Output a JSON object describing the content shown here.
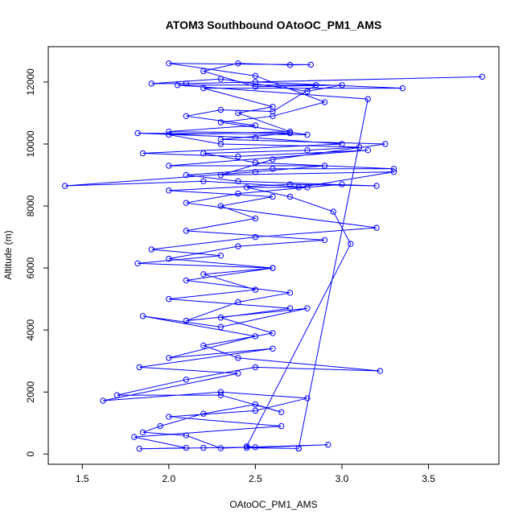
{
  "chart_data": {
    "type": "line",
    "title": "ATOM3 Southbound OAtoOC_PM1_AMS",
    "x_label": "OAtoOC_PM1_AMS",
    "y_label": "Altitude (m)",
    "x": [
      2.75,
      2.45,
      2.92,
      2.3,
      2.1,
      1.85,
      1.95,
      2.2,
      2.5,
      2.65,
      2.3,
      1.7,
      2.1,
      2.5,
      3.22,
      2.4,
      2.2,
      2.6,
      2.3,
      2.7,
      2.0,
      2.5,
      2.2,
      2.6,
      2.0,
      2.4,
      2.9,
      2.1,
      2.5,
      2.3,
      2.6,
      2.0,
      2.7,
      3.2,
      2.4,
      2.1,
      2.6,
      3.3,
      2.5,
      2.2,
      2.8,
      3.1,
      2.3,
      2.0,
      2.7,
      2.4,
      2.6,
      2.2,
      3.35,
      2.5,
      3.81,
      2.1,
      1.9,
      2.3,
      2.8,
      3.0,
      2.5,
      2.2,
      2.4,
      2.7,
      2.82,
      2.0,
      2.5,
      2.9,
      2.6,
      2.3,
      2.8,
      1.82,
      2.5,
      3.0,
      1.85,
      2.4,
      3.15,
      2.0,
      2.9,
      2.5,
      1.4,
      2.2,
      2.8,
      3.0,
      2.4,
      2.1,
      3.2,
      2.5,
      1.9,
      2.3,
      1.82,
      2.6,
      2.1,
      2.7,
      2.4,
      2.1,
      2.8,
      2.3,
      1.85,
      2.5,
      2.0,
      2.6,
      1.83,
      2.4,
      1.62,
      2.3,
      2.8,
      2.5,
      2.0,
      2.65,
      1.8,
      2.1,
      1.83,
      2.2,
      2.5,
      2.45,
      3.05,
      2.95,
      2.7,
      2.45,
      2.75,
      3.3,
      2.3,
      2.6,
      3.25,
      2.3,
      2.7,
      2.0,
      2.5,
      2.1,
      2.3,
      2.6,
      2.85,
      2.05,
      3.15,
      2.75
    ],
    "series": [
      {
        "name": "OAtoOC_PM1_AMS",
        "color": "#0000ff",
        "values": [
          180,
          200,
          300,
          190,
          600,
          700,
          900,
          1300,
          1600,
          1350,
          1900,
          1900,
          2400,
          2800,
          2680,
          3100,
          3500,
          3900,
          4400,
          4700,
          5000,
          5300,
          5800,
          6000,
          6300,
          6700,
          6900,
          7200,
          7600,
          8000,
          8300,
          8500,
          8700,
          8650,
          8800,
          9000,
          9200,
          9200,
          9400,
          9700,
          9800,
          9900,
          10000,
          10300,
          10400,
          11000,
          11200,
          11800,
          11800,
          12000,
          12170,
          11950,
          11950,
          12100,
          11700,
          11900,
          11850,
          12350,
          12600,
          12550,
          12560,
          12600,
          12200,
          11350,
          10900,
          10700,
          10300,
          10350,
          10200,
          10000,
          9700,
          9600,
          9800,
          9300,
          9300,
          9100,
          8650,
          8800,
          8600,
          8700,
          8400,
          8100,
          7300,
          7000,
          6600,
          6400,
          6150,
          6000,
          5600,
          5200,
          4900,
          4300,
          4700,
          4100,
          4450,
          3800,
          3100,
          3400,
          2800,
          2600,
          1720,
          2000,
          1800,
          1400,
          1200,
          900,
          550,
          200,
          170,
          200,
          220,
          250,
          6780,
          7820,
          8300,
          8600,
          8600,
          9100,
          9000,
          9500,
          10000,
          10150,
          10350,
          10400,
          10600,
          10900,
          11100,
          11050,
          11900,
          11900,
          11450,
          180
        ]
      }
    ],
    "xlim": [
      1.3036,
      3.9064
    ],
    "ylim": [
      -330,
      13140
    ],
    "xticks": [
      1.5,
      {
        "value": 2,
        "label": "2.0"
      },
      2.5,
      {
        "value": 3,
        "label": "3.0"
      },
      3.5
    ],
    "yticks": [
      0,
      2000,
      4000,
      6000,
      8000,
      10000,
      12000
    ]
  }
}
